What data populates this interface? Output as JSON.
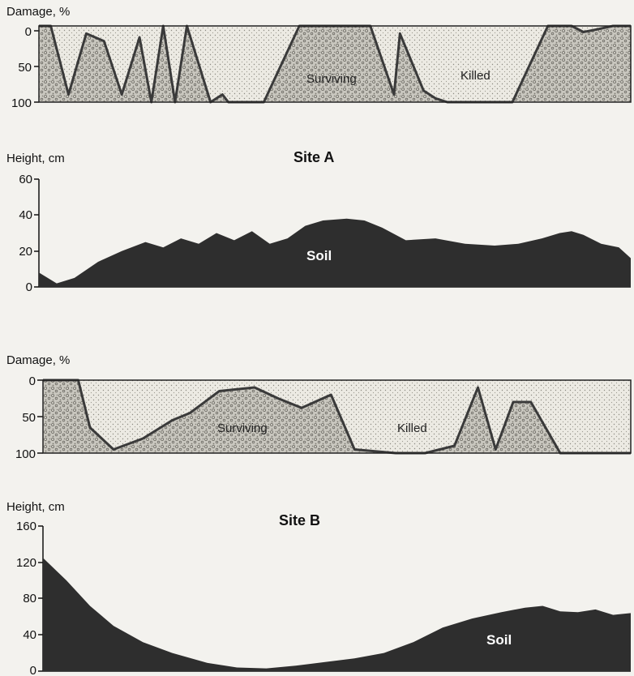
{
  "chart_data": [
    {
      "type": "area",
      "title": "Site A",
      "ylabel": "Damage, %",
      "ylim": [
        100,
        0
      ],
      "yticks": [
        0,
        50,
        100
      ],
      "x_range": [
        0,
        100
      ],
      "grid": false,
      "region_labels": [
        "Surviving",
        "Killed"
      ],
      "series": [
        {
          "values": [
            [
              0,
              0
            ],
            [
              2,
              0
            ],
            [
              5,
              90
            ],
            [
              8,
              10
            ],
            [
              11,
              20
            ],
            [
              14,
              90
            ],
            [
              17,
              15
            ],
            [
              19,
              100
            ],
            [
              21,
              0
            ],
            [
              23,
              100
            ],
            [
              25,
              0
            ],
            [
              29,
              100
            ],
            [
              31,
              90
            ],
            [
              32,
              100
            ],
            [
              38,
              100
            ],
            [
              44,
              0
            ],
            [
              56,
              0
            ],
            [
              60,
              90
            ],
            [
              61,
              10
            ],
            [
              65,
              85
            ],
            [
              67,
              95
            ],
            [
              69,
              100
            ],
            [
              80,
              100
            ],
            [
              86,
              0
            ],
            [
              90,
              0
            ],
            [
              92,
              8
            ],
            [
              94,
              5
            ],
            [
              97,
              0
            ],
            [
              100,
              0
            ]
          ]
        }
      ]
    },
    {
      "type": "area",
      "title": "Site A",
      "ylabel": "Height, cm",
      "ylim": [
        0,
        60
      ],
      "yticks": [
        0,
        20,
        40,
        60
      ],
      "x_range": [
        0,
        100
      ],
      "grid": false,
      "series": [
        {
          "name": "Soil",
          "values": [
            [
              0,
              8
            ],
            [
              3,
              2
            ],
            [
              6,
              5
            ],
            [
              10,
              14
            ],
            [
              14,
              20
            ],
            [
              18,
              25
            ],
            [
              21,
              22
            ],
            [
              24,
              27
            ],
            [
              27,
              24
            ],
            [
              30,
              30
            ],
            [
              33,
              26
            ],
            [
              36,
              31
            ],
            [
              39,
              24
            ],
            [
              42,
              27
            ],
            [
              45,
              34
            ],
            [
              48,
              37
            ],
            [
              52,
              38
            ],
            [
              55,
              37
            ],
            [
              58,
              33
            ],
            [
              62,
              26
            ],
            [
              67,
              27
            ],
            [
              72,
              24
            ],
            [
              77,
              23
            ],
            [
              81,
              24
            ],
            [
              85,
              27
            ],
            [
              88,
              30
            ],
            [
              90,
              31
            ],
            [
              92,
              29
            ],
            [
              95,
              24
            ],
            [
              98,
              22
            ],
            [
              100,
              16
            ]
          ]
        }
      ]
    },
    {
      "type": "area",
      "title": "Site B",
      "ylabel": "Damage, %",
      "ylim": [
        100,
        0
      ],
      "yticks": [
        0,
        50,
        100
      ],
      "x_range": [
        0,
        100
      ],
      "grid": false,
      "region_labels": [
        "Surviving",
        "Killed"
      ],
      "series": [
        {
          "values": [
            [
              0,
              0
            ],
            [
              6,
              0
            ],
            [
              8,
              65
            ],
            [
              12,
              95
            ],
            [
              17,
              80
            ],
            [
              22,
              55
            ],
            [
              25,
              45
            ],
            [
              30,
              15
            ],
            [
              36,
              10
            ],
            [
              40,
              25
            ],
            [
              44,
              38
            ],
            [
              49,
              20
            ],
            [
              53,
              95
            ],
            [
              60,
              100
            ],
            [
              65,
              100
            ],
            [
              70,
              90
            ],
            [
              74,
              10
            ],
            [
              77,
              95
            ],
            [
              80,
              30
            ],
            [
              83,
              30
            ],
            [
              88,
              100
            ],
            [
              100,
              100
            ]
          ]
        }
      ]
    },
    {
      "type": "area",
      "title": "Site B",
      "ylabel": "Height, cm",
      "ylim": [
        0,
        160
      ],
      "yticks": [
        0,
        40,
        80,
        120,
        160
      ],
      "x_range": [
        0,
        100
      ],
      "grid": false,
      "series": [
        {
          "name": "Soil",
          "values": [
            [
              0,
              125
            ],
            [
              4,
              100
            ],
            [
              8,
              72
            ],
            [
              12,
              50
            ],
            [
              17,
              32
            ],
            [
              22,
              20
            ],
            [
              28,
              9
            ],
            [
              33,
              4
            ],
            [
              38,
              3
            ],
            [
              43,
              6
            ],
            [
              48,
              10
            ],
            [
              53,
              14
            ],
            [
              58,
              20
            ],
            [
              63,
              32
            ],
            [
              68,
              48
            ],
            [
              73,
              58
            ],
            [
              78,
              65
            ],
            [
              82,
              70
            ],
            [
              85,
              72
            ],
            [
              88,
              66
            ],
            [
              91,
              65
            ],
            [
              94,
              68
            ],
            [
              97,
              62
            ],
            [
              100,
              64
            ]
          ]
        }
      ]
    }
  ]
}
